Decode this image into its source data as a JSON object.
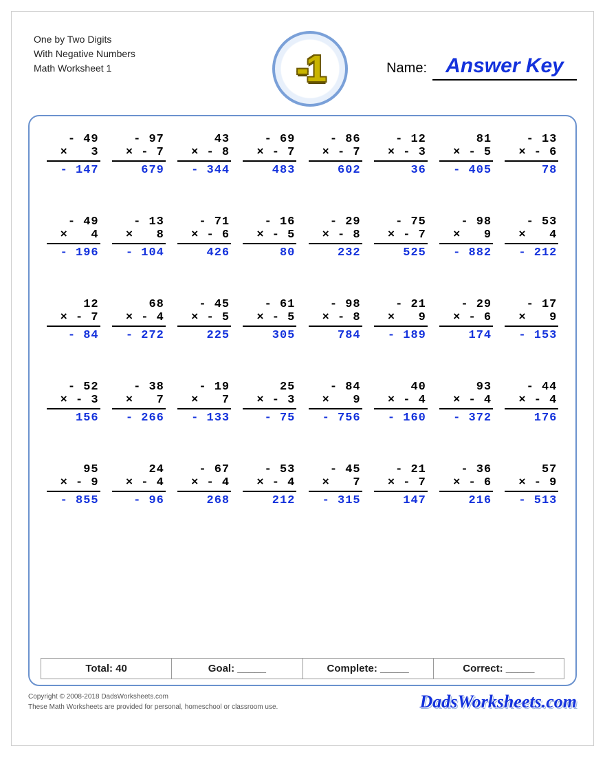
{
  "header": {
    "title_lines": [
      "One by Two Digits",
      "With Negative Numbers",
      "Math Worksheet 1"
    ],
    "badge_text": "-1",
    "name_label": "Name:",
    "answer_key": "Answer Key"
  },
  "colors": {
    "frame_border": "#6b92ce",
    "answer": "#1432dc",
    "text": "#000000",
    "badge_ring": "#7aa0d8",
    "badge_glyph": "#c9b400"
  },
  "grid": {
    "rows": 5,
    "cols": 8,
    "operator": "×",
    "font_family": "Courier New",
    "problem_fontsize": 17,
    "answer_fontsize": 17
  },
  "problems": [
    [
      {
        "a": "- 49",
        "b": "3",
        "ans": "- 147"
      },
      {
        "a": "- 97",
        "b": "- 7",
        "ans": "679"
      },
      {
        "a": "43",
        "b": "- 8",
        "ans": "- 344"
      },
      {
        "a": "- 69",
        "b": "- 7",
        "ans": "483"
      },
      {
        "a": "- 86",
        "b": "- 7",
        "ans": "602"
      },
      {
        "a": "- 12",
        "b": "- 3",
        "ans": "36"
      },
      {
        "a": "81",
        "b": "- 5",
        "ans": "- 405"
      },
      {
        "a": "- 13",
        "b": "- 6",
        "ans": "78"
      }
    ],
    [
      {
        "a": "- 49",
        "b": "4",
        "ans": "- 196"
      },
      {
        "a": "- 13",
        "b": "8",
        "ans": "- 104"
      },
      {
        "a": "- 71",
        "b": "- 6",
        "ans": "426"
      },
      {
        "a": "- 16",
        "b": "- 5",
        "ans": "80"
      },
      {
        "a": "- 29",
        "b": "- 8",
        "ans": "232"
      },
      {
        "a": "- 75",
        "b": "- 7",
        "ans": "525"
      },
      {
        "a": "- 98",
        "b": "9",
        "ans": "- 882"
      },
      {
        "a": "- 53",
        "b": "4",
        "ans": "- 212"
      }
    ],
    [
      {
        "a": "12",
        "b": "- 7",
        "ans": "- 84"
      },
      {
        "a": "68",
        "b": "- 4",
        "ans": "- 272"
      },
      {
        "a": "- 45",
        "b": "- 5",
        "ans": "225"
      },
      {
        "a": "- 61",
        "b": "- 5",
        "ans": "305"
      },
      {
        "a": "- 98",
        "b": "- 8",
        "ans": "784"
      },
      {
        "a": "- 21",
        "b": "9",
        "ans": "- 189"
      },
      {
        "a": "- 29",
        "b": "- 6",
        "ans": "174"
      },
      {
        "a": "- 17",
        "b": "9",
        "ans": "- 153"
      }
    ],
    [
      {
        "a": "- 52",
        "b": "- 3",
        "ans": "156"
      },
      {
        "a": "- 38",
        "b": "7",
        "ans": "- 266"
      },
      {
        "a": "- 19",
        "b": "7",
        "ans": "- 133"
      },
      {
        "a": "25",
        "b": "- 3",
        "ans": "- 75"
      },
      {
        "a": "- 84",
        "b": "9",
        "ans": "- 756"
      },
      {
        "a": "40",
        "b": "- 4",
        "ans": "- 160"
      },
      {
        "a": "93",
        "b": "- 4",
        "ans": "- 372"
      },
      {
        "a": "- 44",
        "b": "- 4",
        "ans": "176"
      }
    ],
    [
      {
        "a": "95",
        "b": "- 9",
        "ans": "- 855"
      },
      {
        "a": "24",
        "b": "- 4",
        "ans": "- 96"
      },
      {
        "a": "- 67",
        "b": "- 4",
        "ans": "268"
      },
      {
        "a": "- 53",
        "b": "- 4",
        "ans": "212"
      },
      {
        "a": "- 45",
        "b": "7",
        "ans": "- 315"
      },
      {
        "a": "- 21",
        "b": "- 7",
        "ans": "147"
      },
      {
        "a": "- 36",
        "b": "- 6",
        "ans": "216"
      },
      {
        "a": "57",
        "b": "- 9",
        "ans": "- 513"
      }
    ]
  ],
  "stats": {
    "total_label": "Total:",
    "total_value": "40",
    "goal_label": "Goal:",
    "complete_label": "Complete:",
    "correct_label": "Correct:",
    "blank": "_____"
  },
  "footer": {
    "copyright": "Copyright © 2008-2018 DadsWorksheets.com",
    "disclaimer": "These Math Worksheets are provided for personal, homeschool or classroom use.",
    "brand": "DadsWorksheets.com"
  }
}
